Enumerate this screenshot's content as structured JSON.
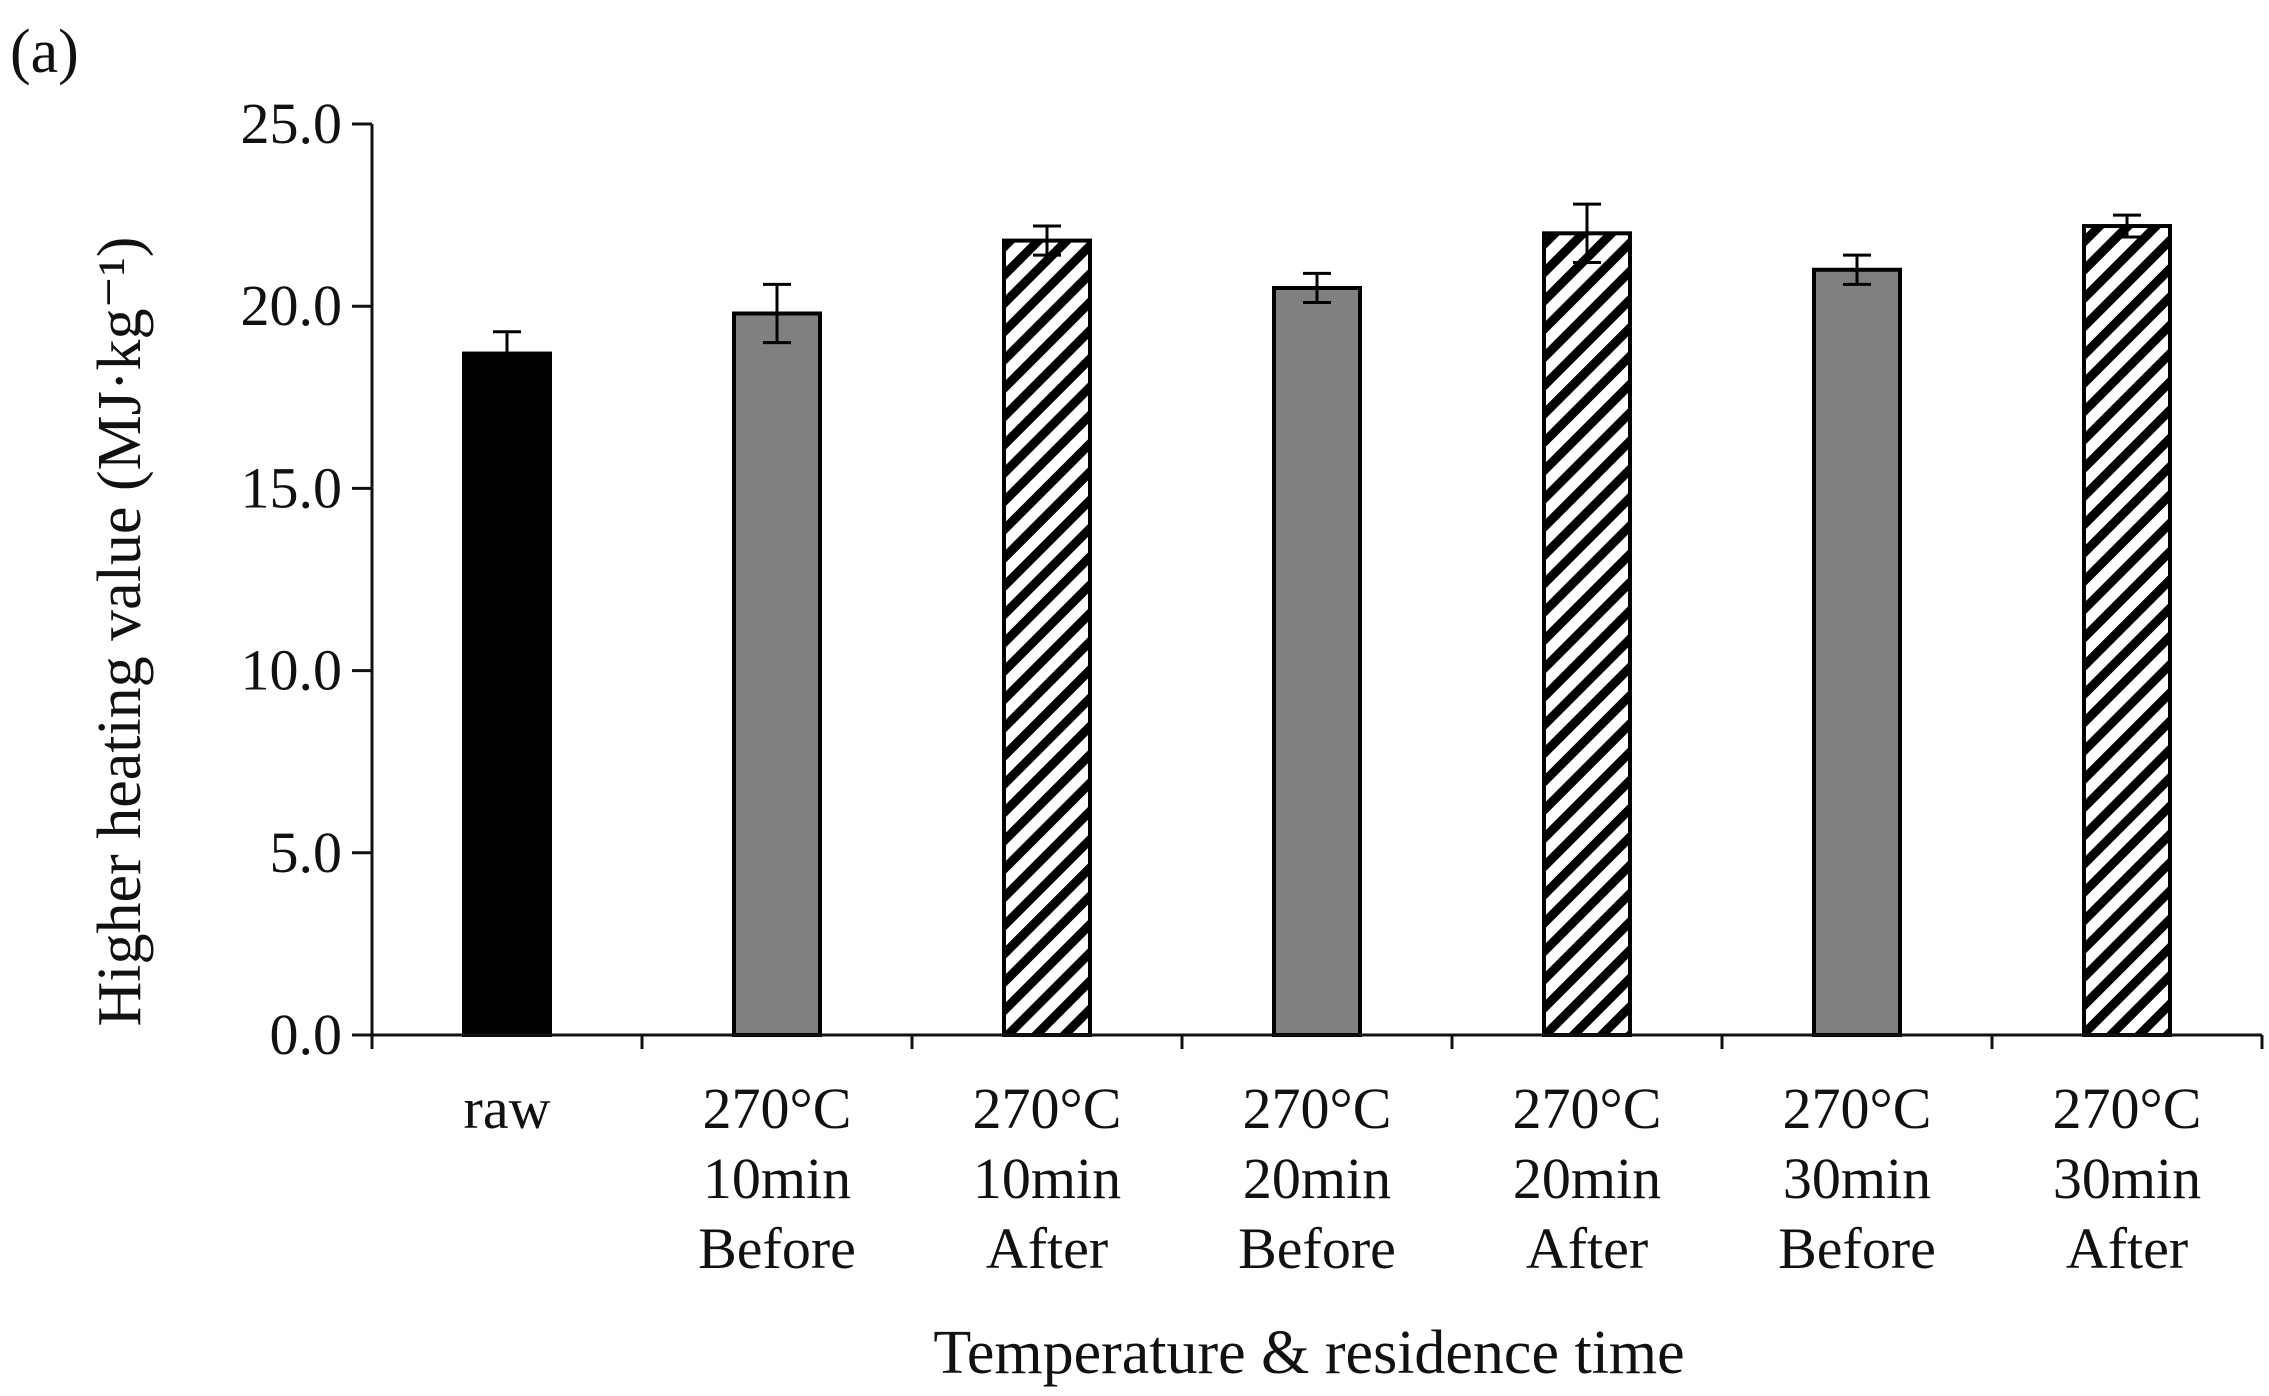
{
  "chart_data": {
    "type": "bar",
    "panel_label": "(a)",
    "title": "",
    "xlabel": "Temperature & residence time",
    "ylabel": "Higher heating value (MJ·kg⁻¹)",
    "ylim": [
      0,
      25
    ],
    "yticks": [
      "0.0",
      "5.0",
      "10.0",
      "15.0",
      "20.0",
      "25.0"
    ],
    "grid": false,
    "categories": [
      [
        "raw"
      ],
      [
        "270°C",
        "10min",
        "Before"
      ],
      [
        "270°C",
        "10min",
        "After"
      ],
      [
        "270°C",
        "20min",
        "Before"
      ],
      [
        "270°C",
        "20min",
        "After"
      ],
      [
        "270°C",
        "30min",
        "Before"
      ],
      [
        "270°C",
        "30min",
        "After"
      ]
    ],
    "values": [
      18.7,
      19.8,
      21.8,
      20.5,
      22.0,
      21.0,
      22.2
    ],
    "errors": [
      0.6,
      0.8,
      0.4,
      0.4,
      0.8,
      0.4,
      0.3
    ],
    "bar_styles": [
      "black",
      "gray",
      "hatched",
      "gray",
      "hatched",
      "gray",
      "hatched"
    ],
    "colors": {
      "black": "#000000",
      "gray": "#808080",
      "hatch": "#000000",
      "axis": "#111111"
    }
  }
}
